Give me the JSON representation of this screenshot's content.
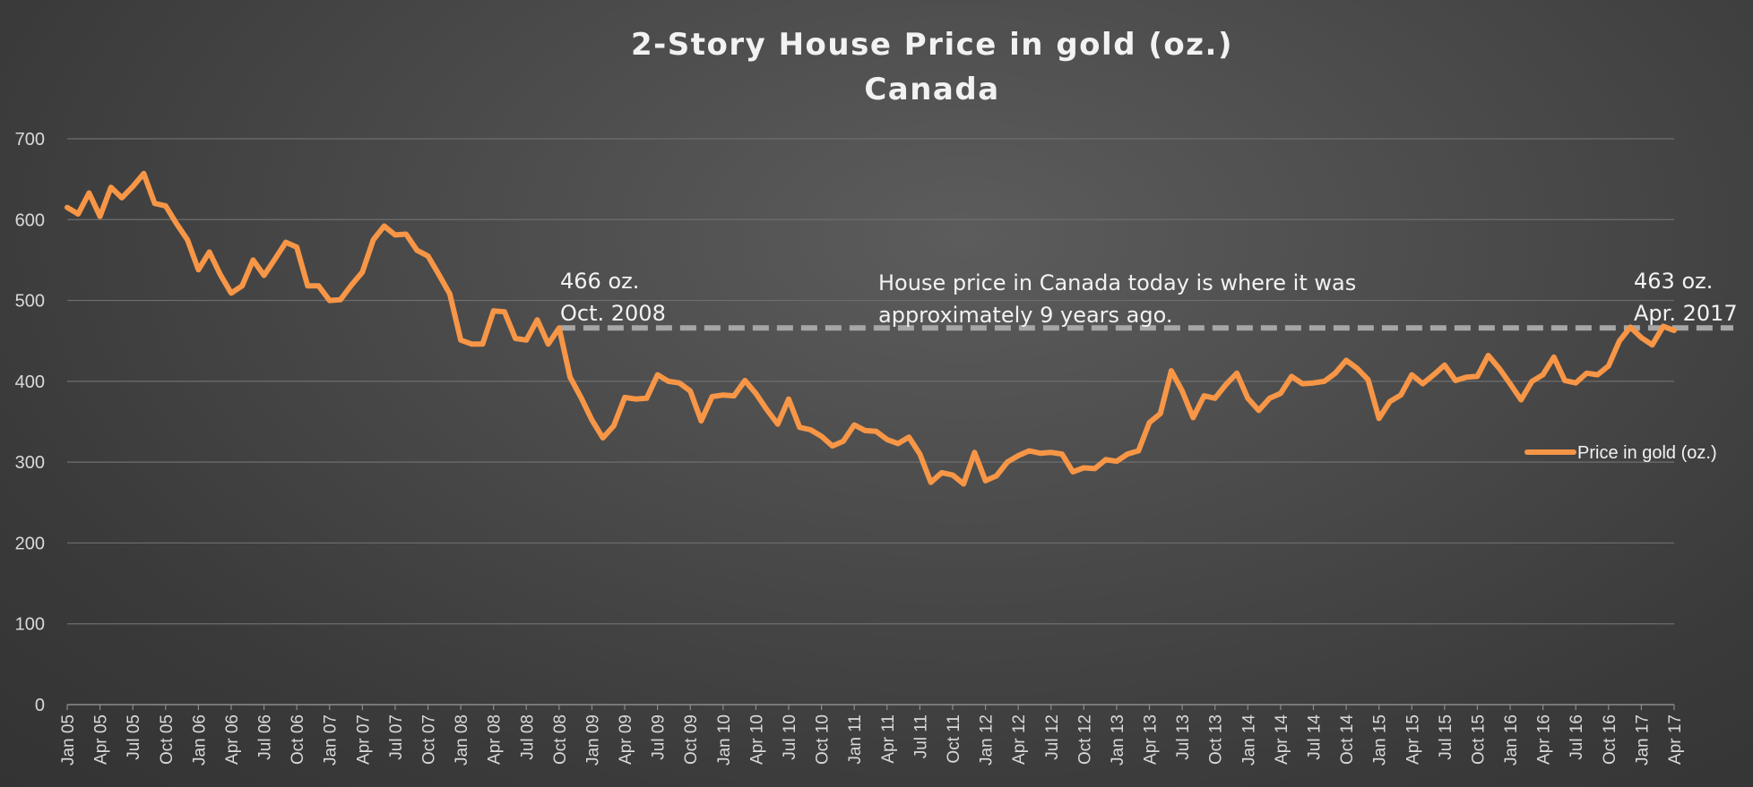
{
  "chart_data": {
    "type": "line",
    "title": "2-Story House Price in gold (oz.)",
    "subtitle": "Canada",
    "xlabel": "",
    "ylabel": "",
    "ylim": [
      0,
      700
    ],
    "yticks": [
      0,
      100,
      200,
      300,
      400,
      500,
      600,
      700
    ],
    "grid": true,
    "legend_position": "right",
    "line_color": "#f79646",
    "reference_line_color": "#a6a6a6",
    "xtick_labels": [
      "Jan 05",
      "Apr 05",
      "Jul 05",
      "Oct 05",
      "Jan 06",
      "Apr 06",
      "Jul 06",
      "Oct 06",
      "Jan 07",
      "Apr 07",
      "Jul 07",
      "Oct 07",
      "Jan 08",
      "Apr 08",
      "Jul 08",
      "Oct 08",
      "Jan 09",
      "Apr 09",
      "Jul 09",
      "Oct 09",
      "Jan 10",
      "Apr 10",
      "Jul 10",
      "Oct 10",
      "Jan 11",
      "Apr 11",
      "Jul 11",
      "Oct 11",
      "Jan 12",
      "Apr 12",
      "Jul 12",
      "Oct 12",
      "Jan 13",
      "Apr 13",
      "Jul 13",
      "Oct 13",
      "Jan 14",
      "Apr 14",
      "Jul 14",
      "Oct 14",
      "Jan 15",
      "Apr 15",
      "Jul 15",
      "Oct 15",
      "Jan 16",
      "Apr 16",
      "Jul 16",
      "Oct 16",
      "Jan 17",
      "Apr 17"
    ],
    "series": [
      {
        "name": "Price in gold (oz.)",
        "values": [
          615,
          607,
          633,
          604,
          640,
          627,
          641,
          657,
          620,
          617,
          595,
          575,
          538,
          560,
          532,
          509,
          518,
          550,
          531,
          551,
          572,
          566,
          518,
          518,
          500,
          501,
          519,
          535,
          575,
          592,
          581,
          582,
          562,
          555,
          532,
          508,
          451,
          446,
          446,
          487,
          486,
          453,
          451,
          476,
          446,
          466,
          405,
          380,
          352,
          330,
          345,
          380,
          378,
          379,
          408,
          400,
          398,
          388,
          351,
          381,
          383,
          382,
          401,
          385,
          365,
          347,
          378,
          343,
          340,
          332,
          320,
          326,
          346,
          339,
          338,
          328,
          323,
          331,
          310,
          275,
          287,
          284,
          273,
          312,
          277,
          283,
          300,
          308,
          314,
          311,
          312,
          310,
          288,
          293,
          292,
          303,
          301,
          310,
          314,
          349,
          360,
          413,
          388,
          355,
          382,
          379,
          396,
          410,
          379,
          364,
          379,
          385,
          406,
          397,
          398,
          400,
          410,
          426,
          416,
          402,
          354,
          375,
          383,
          408,
          397,
          408,
          420,
          401,
          405,
          406,
          432,
          416,
          397,
          377,
          400,
          408,
          430,
          401,
          398,
          410,
          408,
          419,
          450,
          467,
          454,
          445,
          468,
          463
        ]
      }
    ],
    "annotations": [
      {
        "line1": "466 oz.",
        "line2": "Oct. 2008"
      },
      {
        "line1": "House price in Canada today is where it was",
        "line2": "approximately 9 years ago."
      },
      {
        "line1": "463 oz.",
        "line2": "Apr. 2017"
      }
    ],
    "reference_line": {
      "value": 466,
      "from": "Oct 08",
      "style": "dashed"
    }
  }
}
